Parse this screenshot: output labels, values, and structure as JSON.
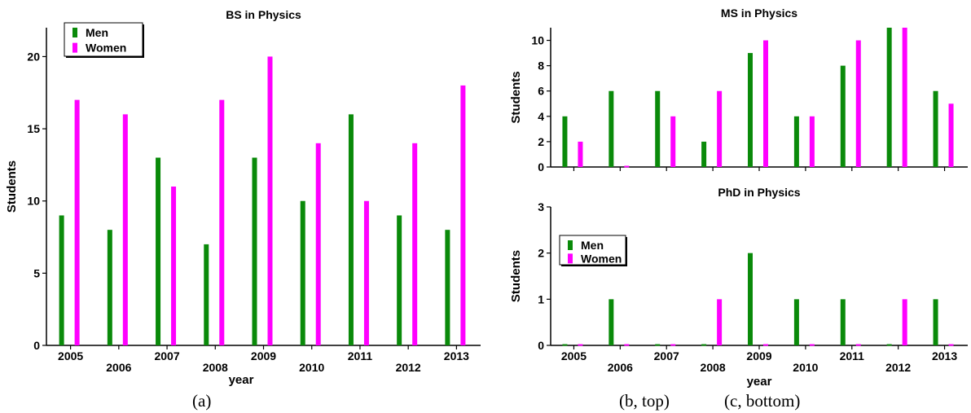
{
  "colors": {
    "men": "#0a8a0a",
    "women": "#ff00ff",
    "axis": "#000000"
  },
  "captions": {
    "a": "(a)",
    "b": "(b, top)",
    "c": "(c, bottom)"
  },
  "chart_data": [
    {
      "id": "bs",
      "type": "bar",
      "title": "BS in Physics",
      "xlabel": "year",
      "ylabel": "Students",
      "categories": [
        "2005",
        "2006",
        "2007",
        "2008",
        "2009",
        "2010",
        "2011",
        "2012",
        "2013"
      ],
      "series": [
        {
          "name": "Men",
          "values": [
            9,
            8,
            13,
            7,
            13,
            10,
            16,
            9,
            8
          ]
        },
        {
          "name": "Women",
          "values": [
            17,
            16,
            11,
            17,
            20,
            14,
            10,
            14,
            18
          ]
        }
      ],
      "ylim": [
        0,
        22
      ],
      "yticks": [
        0,
        5,
        10,
        15,
        20
      ],
      "legend": "top-left",
      "grid": false
    },
    {
      "id": "ms",
      "type": "bar",
      "title": "MS in Physics",
      "xlabel": "",
      "ylabel": "Students",
      "categories": [
        "2005",
        "2006",
        "2007",
        "2008",
        "2009",
        "2010",
        "2011",
        "2012",
        "2013"
      ],
      "series": [
        {
          "name": "Men",
          "values": [
            4,
            6,
            6,
            2,
            9,
            4,
            8,
            11,
            6
          ]
        },
        {
          "name": "Women",
          "values": [
            2,
            0,
            4,
            6,
            10,
            4,
            10,
            11,
            5
          ]
        }
      ],
      "ylim": [
        0,
        11
      ],
      "yticks": [
        0,
        2,
        4,
        6,
        8,
        10
      ],
      "legend": "none",
      "grid": false
    },
    {
      "id": "phd",
      "type": "bar",
      "title": "PhD in Physics",
      "xlabel": "year",
      "ylabel": "Students",
      "categories": [
        "2005",
        "2006",
        "2007",
        "2008",
        "2009",
        "2010",
        "2011",
        "2012",
        "2013"
      ],
      "series": [
        {
          "name": "Men",
          "values": [
            0,
            1,
            0,
            0,
            2,
            1,
            1,
            0,
            1
          ]
        },
        {
          "name": "Women",
          "values": [
            0,
            0,
            0,
            1,
            0,
            0,
            0,
            1,
            0
          ]
        }
      ],
      "ylim": [
        0,
        3
      ],
      "yticks": [
        0,
        1,
        2,
        3
      ],
      "legend": "middle-left",
      "grid": false
    }
  ]
}
